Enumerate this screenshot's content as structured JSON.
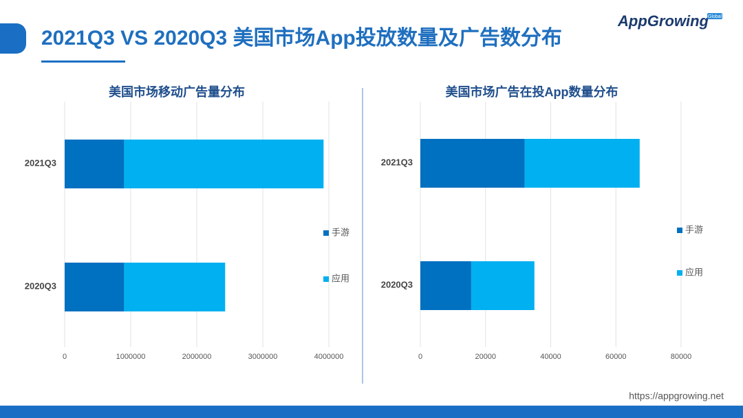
{
  "header": {
    "title": "2021Q3 VS 2020Q3 美国市场App投放数量及广告数分布",
    "logo": "AppGrowing",
    "logo_badge": "Global",
    "url": "https://appgrowing.net"
  },
  "chart_data": [
    {
      "type": "stacked-bar",
      "orientation": "horizontal",
      "title": "美国市场移动广告量分布",
      "categories": [
        "2021Q3",
        "2020Q3"
      ],
      "series": [
        {
          "name": "手游",
          "color": "#0070c0",
          "values": [
            900000,
            900000
          ]
        },
        {
          "name": "应用",
          "color": "#00b0f0",
          "values": [
            3020000,
            1530000
          ]
        }
      ],
      "xlim": [
        0,
        4000000
      ],
      "xticks": [
        0,
        1000000,
        2000000,
        3000000,
        4000000
      ],
      "grid": true,
      "legend": "right"
    },
    {
      "type": "stacked-bar",
      "orientation": "horizontal",
      "title": "美国市场广告在投App数量分布",
      "categories": [
        "2021Q3",
        "2020Q3"
      ],
      "series": [
        {
          "name": "手游",
          "color": "#0070c0",
          "values": [
            32000,
            15600
          ]
        },
        {
          "name": "应用",
          "color": "#00b0f0",
          "values": [
            35300,
            19400
          ]
        }
      ],
      "xlim": [
        0,
        80000
      ],
      "xticks": [
        0,
        20000,
        40000,
        60000,
        80000
      ],
      "grid": true,
      "legend": "right"
    }
  ]
}
